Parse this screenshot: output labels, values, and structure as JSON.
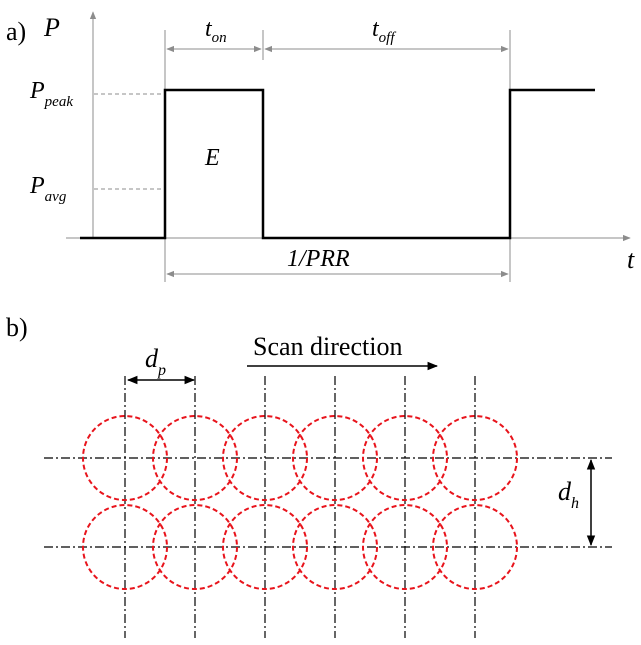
{
  "panel_a": {
    "label": "a)",
    "y_axis_label": "P",
    "x_axis_label": "t",
    "t_on": {
      "main": "t",
      "sub": "on"
    },
    "t_off": {
      "main": "t",
      "sub": "off"
    },
    "p_peak": {
      "main": "P",
      "sub": "peak"
    },
    "p_avg": {
      "main": "P",
      "sub": "avg"
    },
    "energy": "E",
    "period": "1/PRR"
  },
  "panel_b": {
    "label": "b)",
    "scan_direction": "Scan direction",
    "d_p": {
      "main": "d",
      "sub": "p"
    },
    "d_h": {
      "main": "d",
      "sub": "h"
    },
    "rows": 2,
    "spots_per_row": 6,
    "spot_color": "#e8141c"
  }
}
